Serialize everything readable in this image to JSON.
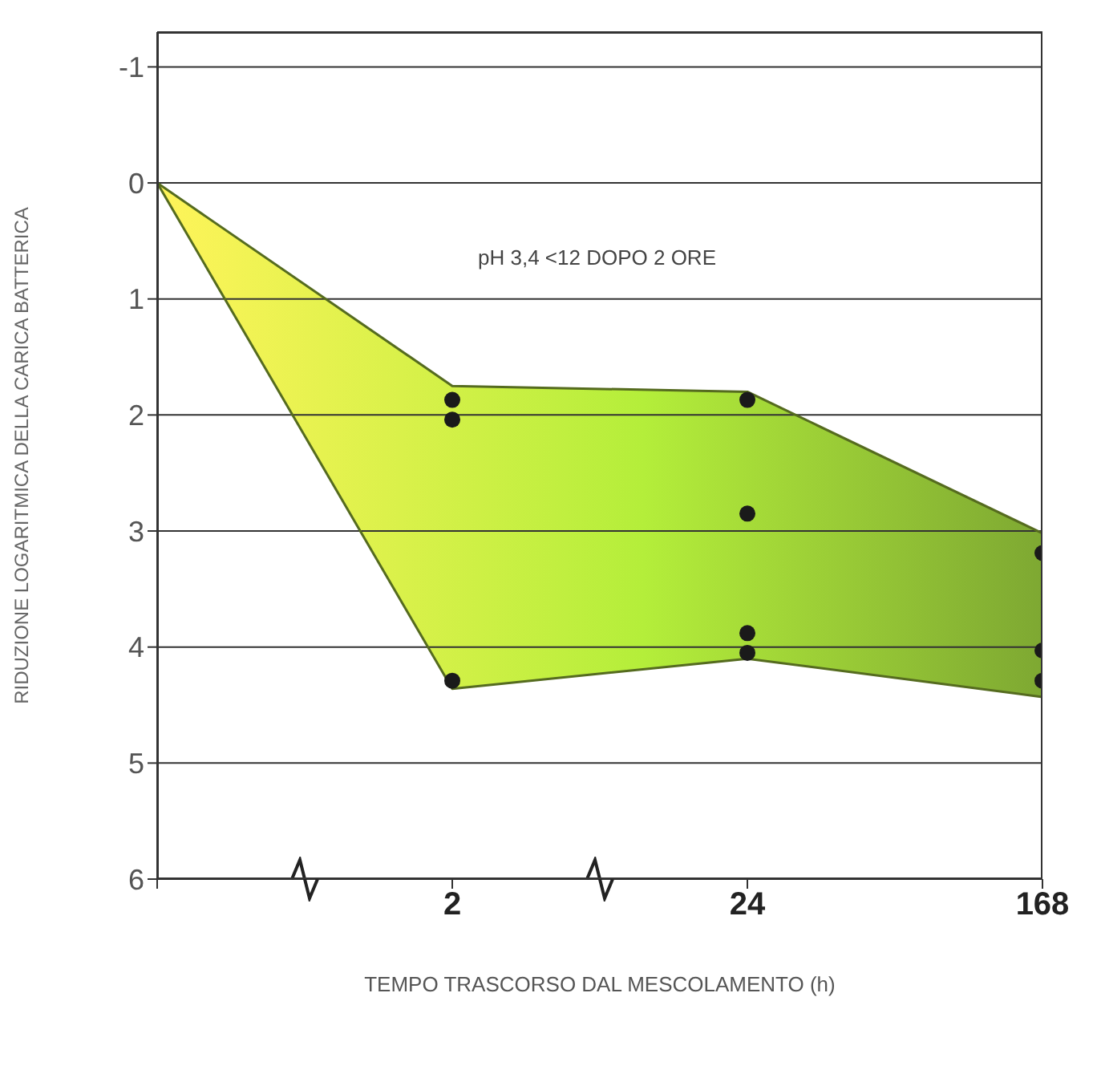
{
  "chart_data": {
    "type": "line",
    "xlabel": "TEMPO TRASCORSO DAL MESCOLAMENTO (h)",
    "ylabel": "RIDUZIONE LOGARITMICA DELLA CARICA BATTERICA",
    "categories": [
      null,
      "2",
      "24",
      "168"
    ],
    "series": [
      {
        "color": "#556b1f",
        "values": [
          0,
          1.75,
          1.8,
          3.02
        ]
      },
      {
        "color": "#556b1f",
        "values": [
          0,
          4.36,
          4.1,
          4.43
        ]
      },
      {
        "type": "scatter",
        "color": "#1a1a1a",
        "marker": "circle",
        "x": [
          "2",
          "2",
          "2",
          "24",
          "24",
          "24",
          "24",
          "168",
          "168",
          "168"
        ],
        "values": [
          1.87,
          2.04,
          4.29,
          1.87,
          2.85,
          3.88,
          4.05,
          3.19,
          4.03,
          4.29
        ]
      }
    ],
    "ylim": [
      6,
      -1.3
    ],
    "yticks": [
      -1,
      0,
      1,
      2,
      3,
      4,
      5,
      6
    ],
    "grid": "y",
    "annotations": [
      "pH 3,4 <12 DOPO 2 ORE"
    ]
  }
}
